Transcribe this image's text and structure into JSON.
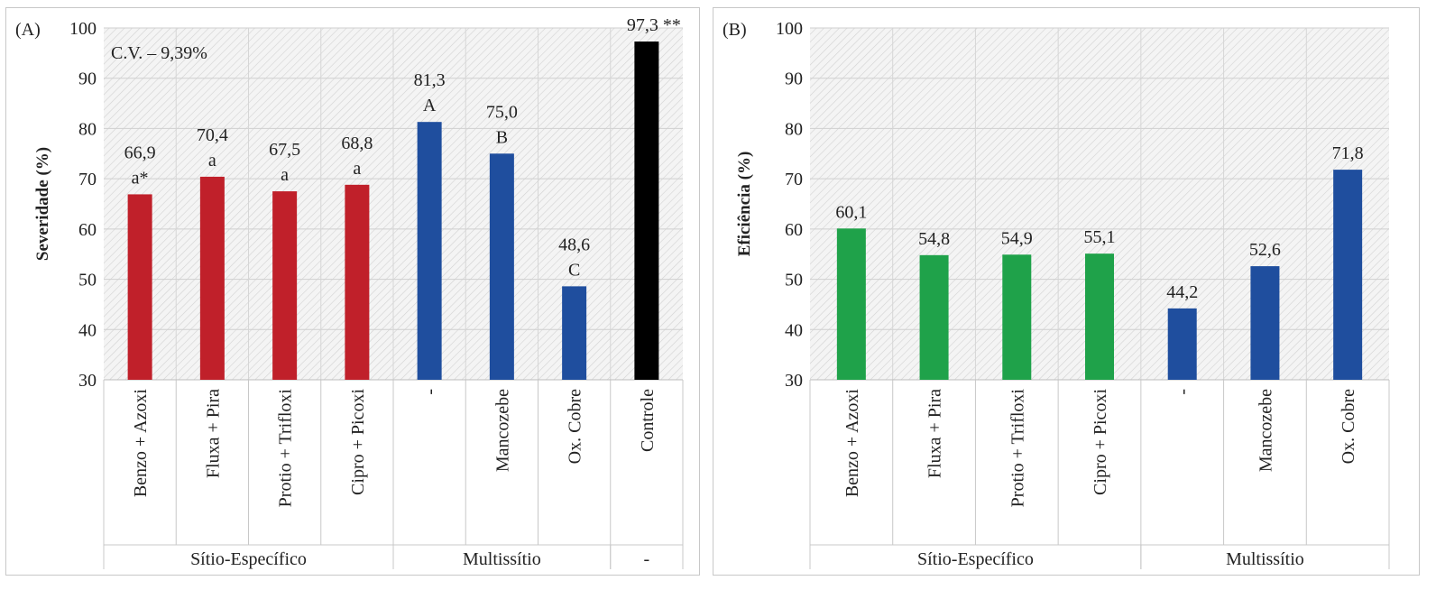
{
  "charts": [
    {
      "panel_label": "(A)",
      "ylabel": "Severidade (%)",
      "annotation": "C.V. – 9,39%",
      "chart_data": {
        "type": "bar",
        "ylim": [
          30,
          100
        ],
        "yticks": [
          "30",
          "40",
          "50",
          "60",
          "70",
          "80",
          "90",
          "100"
        ],
        "categories": [
          "Benzo + Azoxi",
          "Fluxa + Pira",
          "Protio + Trifloxi",
          "Cipro + Picoxi",
          "-",
          "Mancozebe",
          "Ox. Cobre",
          "Controle"
        ],
        "values": [
          66.9,
          70.4,
          67.5,
          68.8,
          81.3,
          75.0,
          48.6,
          97.3
        ],
        "value_labels": [
          "66,9",
          "70,4",
          "67,5",
          "68,8",
          "81,3",
          "75,0",
          "48,6",
          "97,3 **"
        ],
        "letters": [
          "a*",
          "a",
          "a",
          "a",
          "A",
          "B",
          "C",
          ""
        ],
        "colors": [
          "#c0202a",
          "#c0202a",
          "#c0202a",
          "#c0202a",
          "#1f4e9e",
          "#1f4e9e",
          "#1f4e9e",
          "#000000"
        ],
        "groups": [
          {
            "label": "Sítio-Específico",
            "count": 4
          },
          {
            "label": "Multissítio",
            "count": 3
          },
          {
            "label": "-",
            "count": 1
          }
        ],
        "grid": true
      }
    },
    {
      "panel_label": "(B)",
      "ylabel": "Eficiência (%)",
      "annotation": "",
      "chart_data": {
        "type": "bar",
        "ylim": [
          30,
          100
        ],
        "yticks": [
          "30",
          "40",
          "50",
          "60",
          "70",
          "80",
          "90",
          "100"
        ],
        "categories": [
          "Benzo + Azoxi",
          "Fluxa + Pira",
          "Protio + Trifloxi",
          "Cipro + Picoxi",
          "-",
          "Mancozebe",
          "Ox. Cobre"
        ],
        "values": [
          60.1,
          54.8,
          54.9,
          55.1,
          44.2,
          52.6,
          71.8
        ],
        "value_labels": [
          "60,1",
          "54,8",
          "54,9",
          "55,1",
          "44,2",
          "52,6",
          "71,8"
        ],
        "letters": [
          "",
          "",
          "",
          "",
          "",
          "",
          ""
        ],
        "colors": [
          "#1fa24a",
          "#1fa24a",
          "#1fa24a",
          "#1fa24a",
          "#1f4e9e",
          "#1f4e9e",
          "#1f4e9e"
        ],
        "groups": [
          {
            "label": "Sítio-Específico",
            "count": 4
          },
          {
            "label": "Multissítio",
            "count": 3
          }
        ],
        "grid": true
      }
    }
  ]
}
